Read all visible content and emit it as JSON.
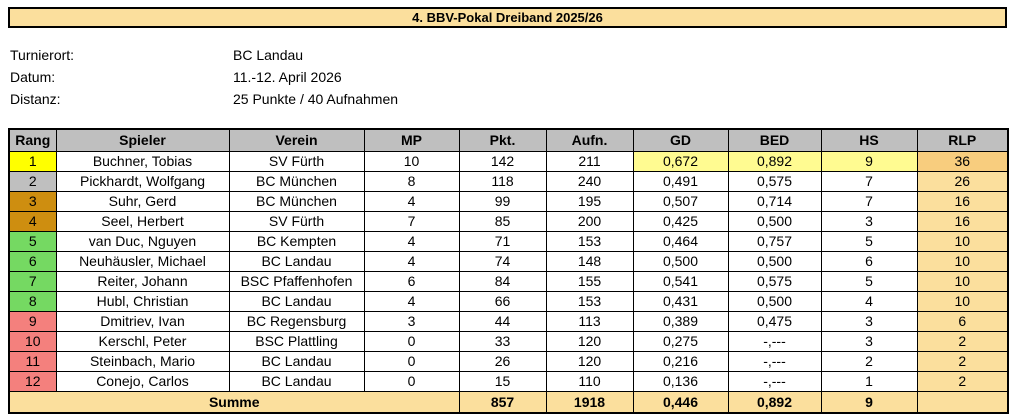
{
  "title": "4. BBV-Pokal Dreiband 2025/26",
  "info": {
    "rows": [
      {
        "label": "Turnierort:",
        "value": "BC Landau"
      },
      {
        "label": "Datum:",
        "value": "11.-12. April 2026"
      },
      {
        "label": "Distanz:",
        "value": "25 Punkte / 40 Aufnahmen"
      }
    ]
  },
  "table": {
    "headers": [
      "Rang",
      "Spieler",
      "Verein",
      "MP",
      "Pkt.",
      "Aufn.",
      "GD",
      "BED",
      "HS",
      "RLP"
    ],
    "rows": [
      {
        "rang": "1",
        "spieler": "Buchner, Tobias",
        "verein": "SV Fürth",
        "mp": "10",
        "pkt": "142",
        "aufn": "211",
        "gd": "0,672",
        "bed": "0,892",
        "hs": "9",
        "rlp": "36",
        "tier": "gold",
        "leader": true
      },
      {
        "rang": "2",
        "spieler": "Pickhardt, Wolfgang",
        "verein": "BC München",
        "mp": "8",
        "pkt": "118",
        "aufn": "240",
        "gd": "0,491",
        "bed": "0,575",
        "hs": "7",
        "rlp": "26",
        "tier": "silver",
        "leader": false
      },
      {
        "rang": "3",
        "spieler": "Suhr, Gerd",
        "verein": "BC München",
        "mp": "4",
        "pkt": "99",
        "aufn": "195",
        "gd": "0,507",
        "bed": "0,714",
        "hs": "7",
        "rlp": "16",
        "tier": "bronze",
        "leader": false
      },
      {
        "rang": "4",
        "spieler": "Seel, Herbert",
        "verein": "SV Fürth",
        "mp": "7",
        "pkt": "85",
        "aufn": "200",
        "gd": "0,425",
        "bed": "0,500",
        "hs": "3",
        "rlp": "16",
        "tier": "bronze",
        "leader": false
      },
      {
        "rang": "5",
        "spieler": "van Duc, Nguyen",
        "verein": "BC Kempten",
        "mp": "4",
        "pkt": "71",
        "aufn": "153",
        "gd": "0,464",
        "bed": "0,757",
        "hs": "5",
        "rlp": "10",
        "tier": "green",
        "leader": false
      },
      {
        "rang": "6",
        "spieler": "Neuhäusler, Michael",
        "verein": "BC Landau",
        "mp": "4",
        "pkt": "74",
        "aufn": "148",
        "gd": "0,500",
        "bed": "0,500",
        "hs": "6",
        "rlp": "10",
        "tier": "green",
        "leader": false
      },
      {
        "rang": "7",
        "spieler": "Reiter, Johann",
        "verein": "BSC Pfaffenhofen",
        "mp": "6",
        "pkt": "84",
        "aufn": "155",
        "gd": "0,541",
        "bed": "0,575",
        "hs": "5",
        "rlp": "10",
        "tier": "green",
        "leader": false
      },
      {
        "rang": "8",
        "spieler": "Hubl, Christian",
        "verein": "BC Landau",
        "mp": "4",
        "pkt": "66",
        "aufn": "153",
        "gd": "0,431",
        "bed": "0,500",
        "hs": "4",
        "rlp": "10",
        "tier": "green",
        "leader": false
      },
      {
        "rang": "9",
        "spieler": "Dmitriev, Ivan",
        "verein": "BC Regensburg",
        "mp": "3",
        "pkt": "44",
        "aufn": "113",
        "gd": "0,389",
        "bed": "0,475",
        "hs": "3",
        "rlp": "6",
        "tier": "red",
        "leader": false
      },
      {
        "rang": "10",
        "spieler": "Kerschl, Peter",
        "verein": "BSC Plattling",
        "mp": "0",
        "pkt": "33",
        "aufn": "120",
        "gd": "0,275",
        "bed": "-,---",
        "hs": "3",
        "rlp": "2",
        "tier": "red",
        "leader": false
      },
      {
        "rang": "11",
        "spieler": "Steinbach, Mario",
        "verein": "BC Landau",
        "mp": "0",
        "pkt": "26",
        "aufn": "120",
        "gd": "0,216",
        "bed": "-,---",
        "hs": "2",
        "rlp": "2",
        "tier": "red",
        "leader": false
      },
      {
        "rang": "12",
        "spieler": "Conejo, Carlos",
        "verein": "BC Landau",
        "mp": "0",
        "pkt": "15",
        "aufn": "110",
        "gd": "0,136",
        "bed": "-,---",
        "hs": "1",
        "rlp": "2",
        "tier": "red",
        "leader": false
      }
    ],
    "summary": {
      "label": "Summe",
      "pkt": "857",
      "aufn": "1918",
      "gd": "0,446",
      "bed": "0,892",
      "hs": "9",
      "rlp": ""
    }
  },
  "colors": {
    "tan": "#FBDF9D",
    "tan_dark": "#F8CD7E",
    "leader_yellow": "#FFFB91",
    "header_gray": "#BFBFBF",
    "rank_gold": "#FFFF00",
    "rank_silver": "#BFBFBF",
    "rank_bronze": "#CE8E10",
    "rank_green": "#75D962",
    "rank_red": "#F4807D",
    "border_black": "#000000",
    "cell_white": "#FFFFFF"
  }
}
